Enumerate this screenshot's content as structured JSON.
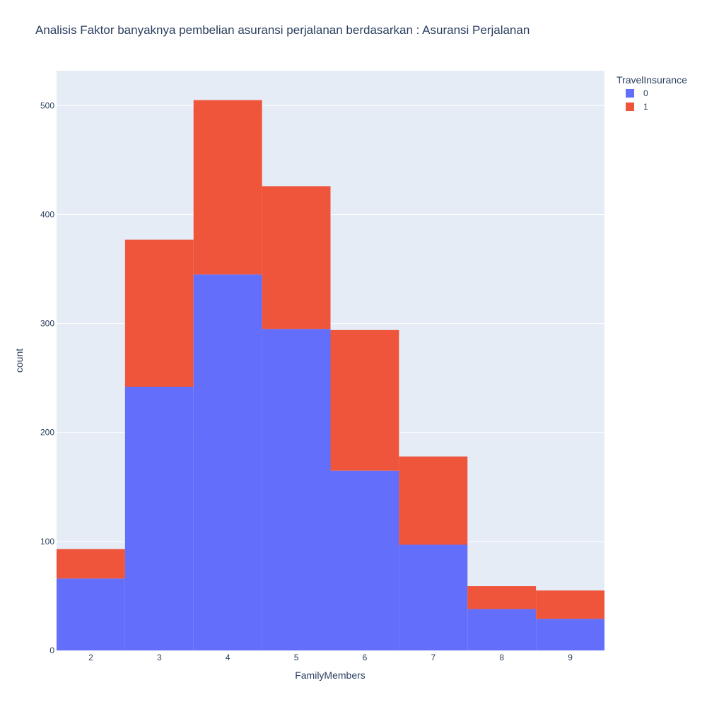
{
  "chart_data": {
    "type": "bar",
    "stacked": true,
    "title": "Analisis Faktor banyaknya pembelian asuransi perjalanan berdasarkan : Asuransi Perjalanan",
    "xlabel": "FamilyMembers",
    "ylabel": "count",
    "categories": [
      "2",
      "3",
      "4",
      "5",
      "6",
      "7",
      "8",
      "9"
    ],
    "ylim": [
      0,
      532
    ],
    "yticks": [
      0,
      100,
      200,
      300,
      400,
      500
    ],
    "grid": true,
    "legend": {
      "title": "TravelInsurance",
      "position": "top-right"
    },
    "series": [
      {
        "name": "0",
        "color": "#636efa",
        "values": [
          66,
          242,
          345,
          295,
          165,
          97,
          38,
          29
        ]
      },
      {
        "name": "1",
        "color": "#ef553b",
        "values": [
          27,
          135,
          160,
          131,
          129,
          81,
          21,
          26
        ]
      }
    ]
  }
}
